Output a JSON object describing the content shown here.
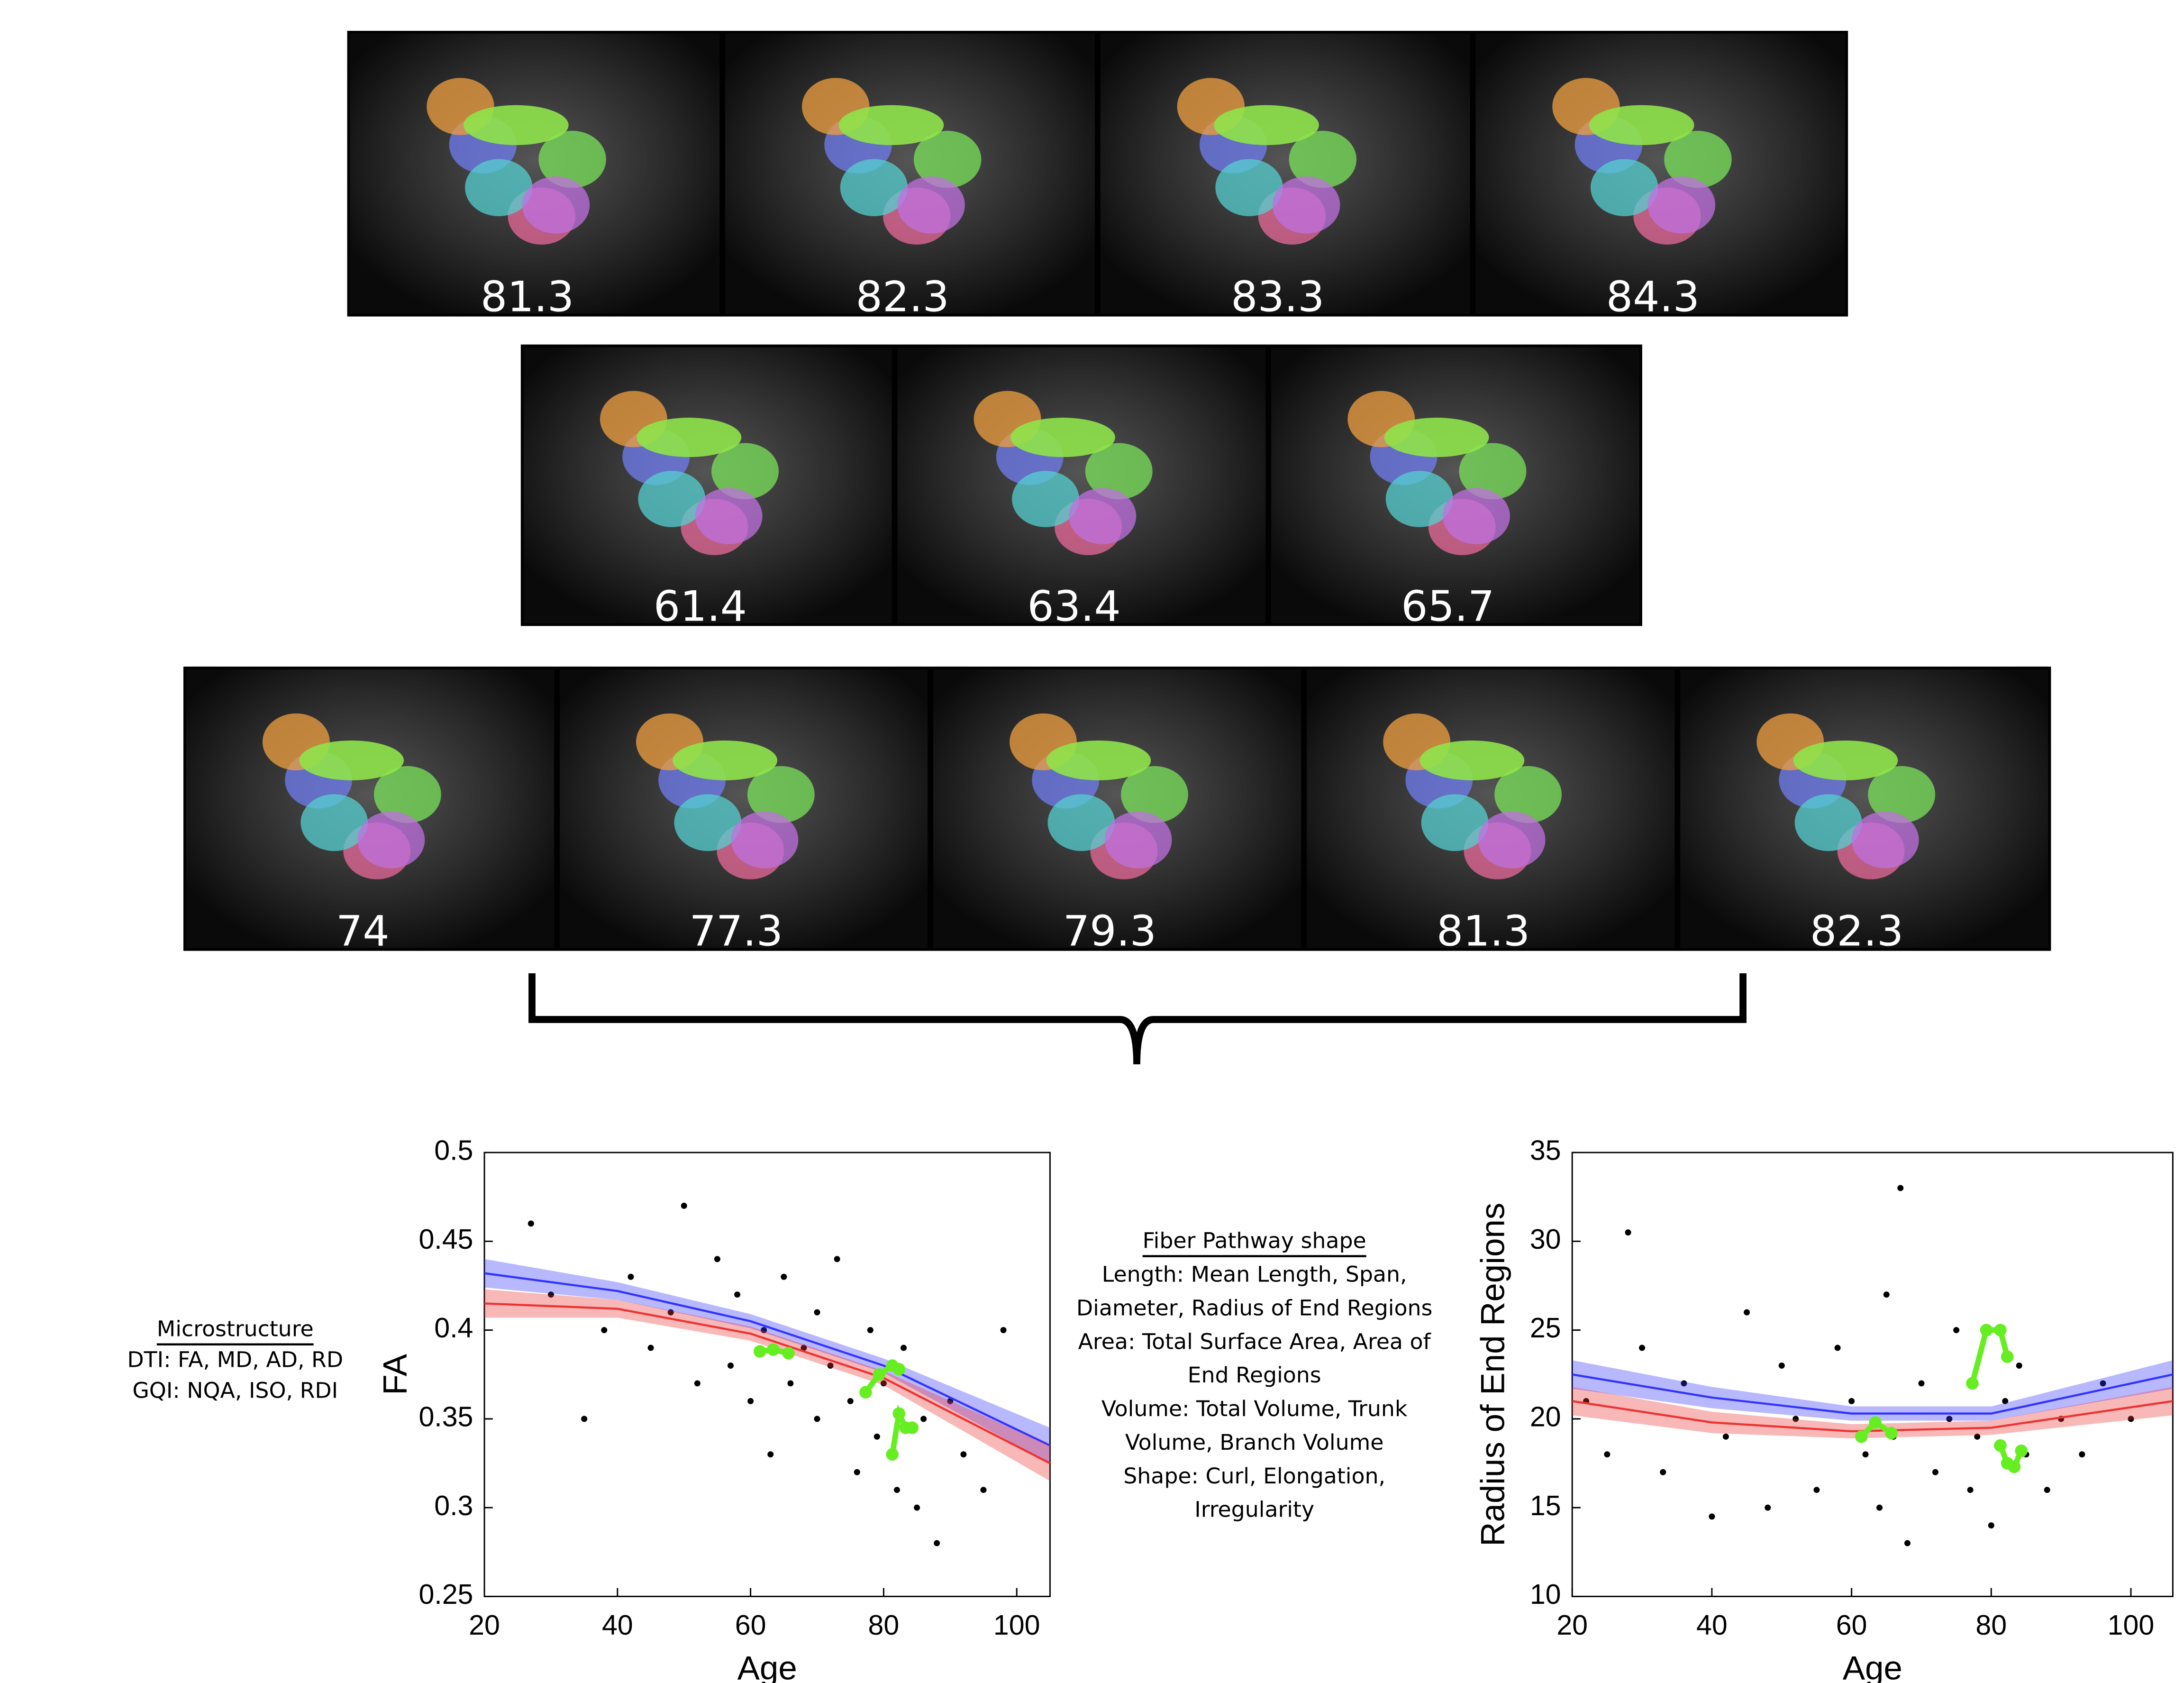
{
  "image_rows": [
    {
      "labels": [
        "81.3",
        "82.3",
        "83.3",
        "84.3"
      ]
    },
    {
      "labels": [
        "61.4",
        "63.4",
        "65.7"
      ]
    },
    {
      "labels": [
        "74",
        "77.3",
        "79.3",
        "81.3",
        "82.3"
      ]
    }
  ],
  "microstructure": {
    "title": "Microstructure",
    "lines": [
      "DTI: FA, MD, AD, RD",
      "GQI: NQA, ISO, RDI"
    ]
  },
  "fiber_shape": {
    "title": "Fiber Pathway shape",
    "lines": [
      "Length: Mean Length, Span,",
      "Diameter, Radius of End Regions",
      "Area: Total Surface Area, Area of",
      "End Regions",
      "Volume: Total Volume, Trunk",
      "Volume, Branch Volume",
      "Shape: Curl, Elongation,",
      "Irregularity"
    ]
  },
  "chart_data": [
    {
      "type": "scatter",
      "x_label": "Age",
      "y_label": "FA",
      "xlim": [
        20,
        105
      ],
      "ylim": [
        0.25,
        0.5
      ],
      "xticks": [
        20,
        40,
        60,
        80,
        100
      ],
      "yticks": [
        0.25,
        0.3,
        0.35,
        0.4,
        0.45,
        0.5
      ],
      "series": [
        {
          "kind": "points",
          "color": "#000000",
          "x": [
            27,
            30,
            35,
            38,
            42,
            45,
            48,
            50,
            52,
            55,
            57,
            58,
            60,
            62,
            63,
            65,
            66,
            68,
            70,
            70,
            72,
            73,
            75,
            76,
            78,
            79,
            80,
            82,
            83,
            85,
            86,
            88,
            90,
            92,
            95,
            98
          ],
          "values": [
            0.46,
            0.42,
            0.35,
            0.4,
            0.43,
            0.39,
            0.41,
            0.47,
            0.37,
            0.44,
            0.38,
            0.42,
            0.36,
            0.4,
            0.33,
            0.43,
            0.37,
            0.39,
            0.41,
            0.35,
            0.38,
            0.44,
            0.36,
            0.32,
            0.4,
            0.34,
            0.37,
            0.31,
            0.39,
            0.3,
            0.35,
            0.28,
            0.36,
            0.33,
            0.31,
            0.4
          ]
        },
        {
          "kind": "fit",
          "color": "#3333ff",
          "x": [
            20,
            40,
            60,
            80,
            105
          ],
          "values": [
            0.432,
            0.422,
            0.405,
            0.38,
            0.335
          ],
          "lower": [
            0.424,
            0.417,
            0.401,
            0.376,
            0.325
          ],
          "upper": [
            0.44,
            0.427,
            0.409,
            0.384,
            0.345
          ]
        },
        {
          "kind": "fit",
          "color": "#ee3333",
          "x": [
            20,
            40,
            60,
            80,
            105
          ],
          "values": [
            0.415,
            0.412,
            0.398,
            0.373,
            0.325
          ],
          "lower": [
            0.407,
            0.407,
            0.394,
            0.369,
            0.315
          ],
          "upper": [
            0.423,
            0.417,
            0.402,
            0.377,
            0.335
          ]
        },
        {
          "kind": "path",
          "color": "#66ee22",
          "x": [
            61.4,
            63.4,
            65.7
          ],
          "values": [
            0.388,
            0.389,
            0.387
          ]
        },
        {
          "kind": "path",
          "color": "#66ee22",
          "x": [
            77.3,
            79.3,
            81.3,
            82.3
          ],
          "values": [
            0.365,
            0.375,
            0.38,
            0.378
          ]
        },
        {
          "kind": "path",
          "color": "#66ee22",
          "x": [
            81.3,
            82.3,
            83.3,
            84.3
          ],
          "values": [
            0.33,
            0.353,
            0.345,
            0.345
          ]
        }
      ]
    },
    {
      "type": "scatter",
      "x_label": "Age",
      "y_label": "Radius of End Regions",
      "xlim": [
        20,
        106
      ],
      "ylim": [
        10,
        35
      ],
      "xticks": [
        20,
        40,
        60,
        80,
        100
      ],
      "yticks": [
        10,
        15,
        20,
        25,
        30,
        35
      ],
      "series": [
        {
          "kind": "points",
          "color": "#000000",
          "x": [
            22,
            25,
            28,
            30,
            33,
            36,
            40,
            42,
            45,
            48,
            50,
            52,
            55,
            58,
            60,
            62,
            64,
            65,
            66,
            67,
            68,
            70,
            72,
            74,
            75,
            77,
            78,
            80,
            82,
            84,
            85,
            88,
            90,
            93,
            96,
            100
          ],
          "values": [
            21,
            18,
            30.5,
            24,
            17,
            22,
            14.5,
            19,
            26,
            15,
            23,
            20,
            16,
            24,
            21,
            18,
            15,
            27,
            19,
            33,
            13,
            22,
            17,
            20,
            25,
            16,
            19,
            14,
            21,
            23,
            18,
            16,
            20,
            18,
            22,
            20
          ]
        },
        {
          "kind": "fit",
          "color": "#3333ff",
          "x": [
            20,
            40,
            60,
            80,
            106
          ],
          "values": [
            22.5,
            21.2,
            20.3,
            20.3,
            22.5
          ],
          "lower": [
            21.7,
            20.6,
            19.9,
            19.9,
            21.7
          ],
          "upper": [
            23.3,
            21.8,
            20.7,
            20.7,
            23.3
          ]
        },
        {
          "kind": "fit",
          "color": "#ee3333",
          "x": [
            20,
            40,
            60,
            80,
            106
          ],
          "values": [
            21,
            19.8,
            19.3,
            19.5,
            21
          ],
          "lower": [
            20.2,
            19.2,
            18.9,
            19.1,
            20.2
          ],
          "upper": [
            21.8,
            20.4,
            19.7,
            19.9,
            21.8
          ]
        },
        {
          "kind": "path",
          "color": "#66ee22",
          "x": [
            61.4,
            63.4,
            65.7
          ],
          "values": [
            19,
            19.8,
            19.2
          ]
        },
        {
          "kind": "path",
          "color": "#66ee22",
          "x": [
            77.3,
            79.3,
            81.3,
            82.3
          ],
          "values": [
            22,
            25,
            25,
            23.5
          ]
        },
        {
          "kind": "path",
          "color": "#66ee22",
          "x": [
            81.3,
            82.3,
            83.3,
            84.3
          ],
          "values": [
            18.5,
            17.5,
            17.3,
            18.2
          ]
        }
      ]
    }
  ]
}
